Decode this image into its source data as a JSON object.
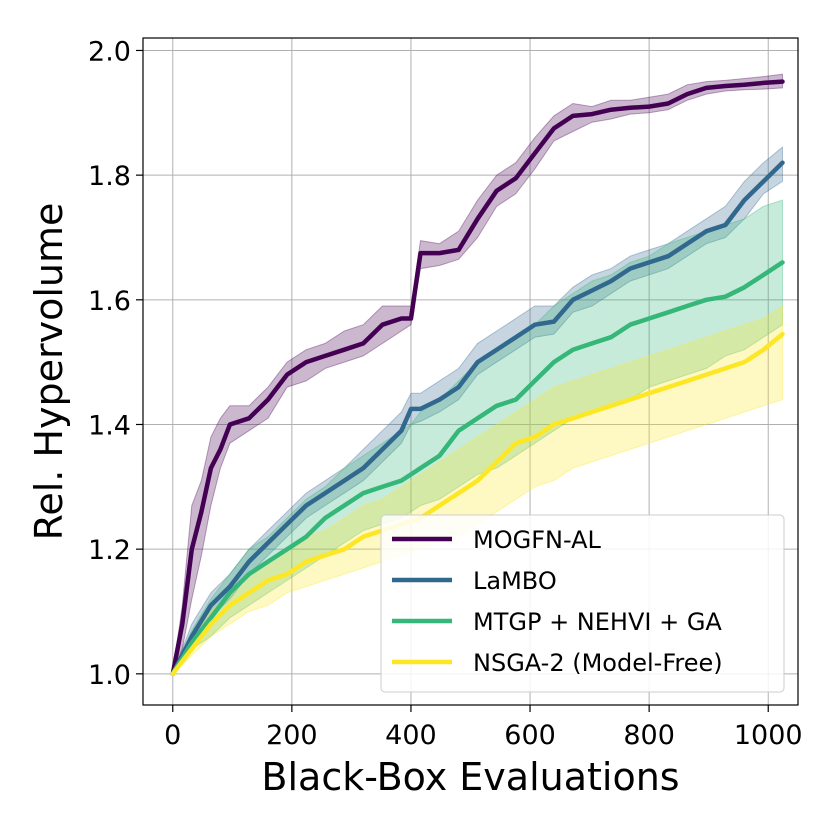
{
  "chart_data": {
    "type": "line",
    "title": "",
    "xlabel": "Black-Box Evaluations",
    "ylabel": "Rel. Hypervolume",
    "xlim": [
      -50,
      1050
    ],
    "ylim": [
      0.95,
      2.02
    ],
    "xticks": [
      0,
      200,
      400,
      600,
      800,
      1000
    ],
    "xtick_labels": [
      "0",
      "200",
      "400",
      "600",
      "800",
      "1000"
    ],
    "yticks": [
      1.0,
      1.2,
      1.4,
      1.6,
      1.8,
      2.0
    ],
    "ytick_labels": [
      "1.0",
      "1.2",
      "1.4",
      "1.6",
      "1.8",
      "2.0"
    ],
    "grid": true,
    "legend_position": "bottom-right",
    "series": [
      {
        "name": "MOGFN-AL",
        "color": "#440154",
        "x": [
          0,
          16,
          32,
          48,
          64,
          80,
          96,
          128,
          160,
          192,
          224,
          256,
          288,
          320,
          352,
          384,
          400,
          416,
          448,
          480,
          512,
          544,
          576,
          608,
          640,
          672,
          704,
          736,
          768,
          800,
          832,
          864,
          896,
          928,
          960,
          992,
          1024
        ],
        "y": [
          1.0,
          1.08,
          1.2,
          1.26,
          1.33,
          1.36,
          1.4,
          1.41,
          1.44,
          1.48,
          1.5,
          1.51,
          1.52,
          1.53,
          1.56,
          1.57,
          1.57,
          1.675,
          1.675,
          1.68,
          1.73,
          1.775,
          1.795,
          1.835,
          1.875,
          1.895,
          1.898,
          1.905,
          1.908,
          1.91,
          1.915,
          1.93,
          1.94,
          1.943,
          1.945,
          1.948,
          1.95
        ],
        "lower": [
          1.0,
          1.04,
          1.12,
          1.19,
          1.27,
          1.33,
          1.37,
          1.39,
          1.41,
          1.46,
          1.47,
          1.49,
          1.5,
          1.51,
          1.53,
          1.55,
          1.56,
          1.65,
          1.655,
          1.665,
          1.7,
          1.75,
          1.77,
          1.81,
          1.855,
          1.87,
          1.885,
          1.89,
          1.898,
          1.9,
          1.905,
          1.92,
          1.93,
          1.935,
          1.937,
          1.938,
          1.94
        ],
        "upper": [
          1.0,
          1.11,
          1.27,
          1.31,
          1.38,
          1.41,
          1.43,
          1.43,
          1.46,
          1.5,
          1.52,
          1.53,
          1.55,
          1.56,
          1.59,
          1.59,
          1.59,
          1.695,
          1.69,
          1.71,
          1.76,
          1.8,
          1.82,
          1.86,
          1.895,
          1.915,
          1.91,
          1.92,
          1.92,
          1.925,
          1.93,
          1.945,
          1.95,
          1.952,
          1.955,
          1.958,
          1.962
        ]
      },
      {
        "name": "LaMBO",
        "color": "#31688e",
        "x": [
          0,
          32,
          64,
          96,
          128,
          160,
          192,
          224,
          256,
          288,
          320,
          352,
          384,
          400,
          416,
          448,
          480,
          512,
          544,
          576,
          608,
          640,
          672,
          704,
          736,
          768,
          800,
          832,
          864,
          896,
          928,
          960,
          992,
          1024
        ],
        "y": [
          1.0,
          1.06,
          1.11,
          1.14,
          1.18,
          1.21,
          1.24,
          1.27,
          1.29,
          1.31,
          1.33,
          1.36,
          1.39,
          1.425,
          1.425,
          1.44,
          1.46,
          1.5,
          1.52,
          1.54,
          1.56,
          1.565,
          1.6,
          1.615,
          1.63,
          1.65,
          1.66,
          1.67,
          1.69,
          1.71,
          1.72,
          1.76,
          1.79,
          1.82
        ],
        "lower": [
          1.0,
          1.04,
          1.09,
          1.12,
          1.16,
          1.19,
          1.22,
          1.25,
          1.27,
          1.29,
          1.31,
          1.34,
          1.37,
          1.4,
          1.405,
          1.42,
          1.44,
          1.48,
          1.5,
          1.52,
          1.54,
          1.545,
          1.58,
          1.59,
          1.61,
          1.63,
          1.64,
          1.65,
          1.67,
          1.69,
          1.7,
          1.73,
          1.77,
          1.79
        ],
        "upper": [
          1.0,
          1.08,
          1.13,
          1.16,
          1.2,
          1.23,
          1.26,
          1.29,
          1.31,
          1.33,
          1.36,
          1.39,
          1.42,
          1.45,
          1.45,
          1.47,
          1.49,
          1.53,
          1.55,
          1.57,
          1.59,
          1.59,
          1.62,
          1.64,
          1.65,
          1.67,
          1.68,
          1.69,
          1.71,
          1.73,
          1.75,
          1.79,
          1.82,
          1.845
        ]
      },
      {
        "name": "MTGP + NEHVI + GA",
        "color": "#35b779",
        "x": [
          0,
          32,
          64,
          96,
          128,
          160,
          192,
          224,
          256,
          288,
          320,
          352,
          384,
          400,
          416,
          448,
          480,
          512,
          544,
          576,
          608,
          640,
          672,
          704,
          736,
          768,
          800,
          832,
          864,
          896,
          928,
          960,
          992,
          1024
        ],
        "y": [
          1.0,
          1.05,
          1.09,
          1.13,
          1.16,
          1.18,
          1.2,
          1.22,
          1.25,
          1.27,
          1.29,
          1.3,
          1.31,
          1.32,
          1.33,
          1.35,
          1.39,
          1.41,
          1.43,
          1.44,
          1.47,
          1.5,
          1.52,
          1.53,
          1.54,
          1.56,
          1.57,
          1.58,
          1.59,
          1.6,
          1.605,
          1.62,
          1.64,
          1.66
        ],
        "lower": [
          1.0,
          1.04,
          1.06,
          1.09,
          1.11,
          1.13,
          1.15,
          1.17,
          1.19,
          1.21,
          1.23,
          1.24,
          1.25,
          1.26,
          1.27,
          1.28,
          1.3,
          1.32,
          1.33,
          1.35,
          1.37,
          1.39,
          1.41,
          1.42,
          1.43,
          1.44,
          1.46,
          1.47,
          1.48,
          1.49,
          1.51,
          1.52,
          1.54,
          1.56
        ],
        "upper": [
          1.0,
          1.07,
          1.12,
          1.16,
          1.2,
          1.22,
          1.25,
          1.28,
          1.3,
          1.33,
          1.35,
          1.37,
          1.39,
          1.4,
          1.42,
          1.44,
          1.47,
          1.5,
          1.52,
          1.54,
          1.56,
          1.59,
          1.61,
          1.63,
          1.64,
          1.66,
          1.67,
          1.69,
          1.7,
          1.71,
          1.72,
          1.73,
          1.75,
          1.76
        ]
      },
      {
        "name": "NSGA-2 (Model-Free)",
        "color": "#fde725",
        "x": [
          0,
          32,
          64,
          96,
          128,
          160,
          192,
          224,
          256,
          288,
          320,
          352,
          384,
          416,
          448,
          480,
          512,
          544,
          576,
          608,
          640,
          672,
          704,
          736,
          768,
          800,
          832,
          864,
          896,
          928,
          960,
          992,
          1024
        ],
        "y": [
          1.0,
          1.04,
          1.08,
          1.11,
          1.13,
          1.15,
          1.16,
          1.18,
          1.19,
          1.2,
          1.22,
          1.23,
          1.24,
          1.25,
          1.27,
          1.29,
          1.31,
          1.34,
          1.37,
          1.38,
          1.4,
          1.41,
          1.42,
          1.43,
          1.44,
          1.45,
          1.46,
          1.47,
          1.48,
          1.49,
          1.5,
          1.52,
          1.545
        ],
        "lower": [
          1.0,
          1.03,
          1.06,
          1.08,
          1.1,
          1.11,
          1.13,
          1.14,
          1.15,
          1.16,
          1.17,
          1.18,
          1.19,
          1.2,
          1.21,
          1.22,
          1.24,
          1.26,
          1.28,
          1.3,
          1.31,
          1.33,
          1.34,
          1.35,
          1.36,
          1.37,
          1.38,
          1.39,
          1.4,
          1.41,
          1.42,
          1.43,
          1.44
        ],
        "upper": [
          1.0,
          1.06,
          1.1,
          1.13,
          1.16,
          1.18,
          1.2,
          1.22,
          1.23,
          1.25,
          1.27,
          1.28,
          1.3,
          1.32,
          1.34,
          1.36,
          1.38,
          1.4,
          1.42,
          1.44,
          1.46,
          1.47,
          1.48,
          1.49,
          1.5,
          1.51,
          1.52,
          1.53,
          1.54,
          1.55,
          1.56,
          1.57,
          1.59
        ]
      }
    ]
  }
}
